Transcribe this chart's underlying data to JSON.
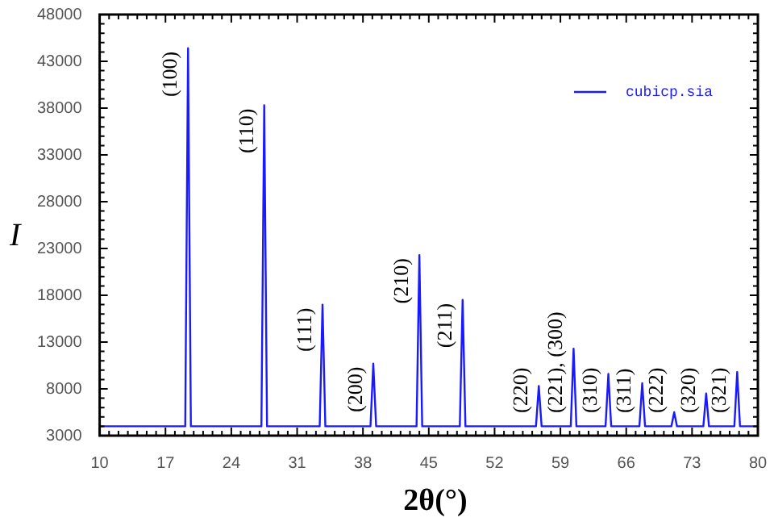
{
  "chart_data": {
    "type": "line",
    "xlabel": "2θ(°)",
    "ylabel": "I",
    "xlim": [
      10,
      80
    ],
    "xticks": [
      10,
      17,
      24,
      31,
      38,
      45,
      52,
      59,
      66,
      73,
      80
    ],
    "ylim": [
      3000,
      48000
    ],
    "yticks": [
      3000,
      8000,
      13000,
      18000,
      23000,
      28000,
      33000,
      38000,
      43000,
      48000
    ],
    "grid": false,
    "legend": "top right",
    "marker": "none",
    "line_style": "solid",
    "series": [
      {
        "name": "cubicp.sia",
        "color": "#1a1aff",
        "x": [
          10,
          19.1,
          19.4,
          19.7,
          27.2,
          27.5,
          27.8,
          33.4,
          33.7,
          34.0,
          38.8,
          39.1,
          39.4,
          43.7,
          44.0,
          44.3,
          48.3,
          48.6,
          48.9,
          56.4,
          56.7,
          57.0,
          60.1,
          60.4,
          60.7,
          63.8,
          64.1,
          64.4,
          67.4,
          67.7,
          68.0,
          70.8,
          71.1,
          71.4,
          74.2,
          74.5,
          74.8,
          77.5,
          77.8,
          78.1,
          80
        ],
        "values": [
          4000,
          4000,
          44400,
          4000,
          4000,
          38300,
          4000,
          4000,
          17000,
          4000,
          4000,
          10700,
          4000,
          4000,
          22300,
          4000,
          4000,
          17500,
          4000,
          4000,
          8300,
          4000,
          4000,
          12300,
          4000,
          4000,
          9600,
          4000,
          4000,
          8600,
          4000,
          4000,
          5500,
          4000,
          4000,
          7500,
          4000,
          4000,
          9800,
          4000,
          4000
        ]
      }
    ],
    "annotations": [
      {
        "text": "(100)",
        "x": 19.4,
        "y": 44400
      },
      {
        "text": "(110)",
        "x": 27.5,
        "y": 38300
      },
      {
        "text": "(111)",
        "x": 33.7,
        "y": 17000
      },
      {
        "text": "(200)",
        "x": 39.1,
        "y": 10700
      },
      {
        "text": "(210)",
        "x": 44.0,
        "y": 22300
      },
      {
        "text": "(211)",
        "x": 48.6,
        "y": 17500
      },
      {
        "text": "(220)",
        "x": 56.7,
        "y": 8300
      },
      {
        "text": "(221), (300)",
        "x": 60.4,
        "y": 12300
      },
      {
        "text": "(310)",
        "x": 64.1,
        "y": 9600
      },
      {
        "text": "(311)",
        "x": 67.7,
        "y": 8600
      },
      {
        "text": "(222)",
        "x": 71.1,
        "y": 5500
      },
      {
        "text": "(320)",
        "x": 74.5,
        "y": 7500
      },
      {
        "text": "(321)",
        "x": 77.8,
        "y": 9800
      }
    ]
  }
}
